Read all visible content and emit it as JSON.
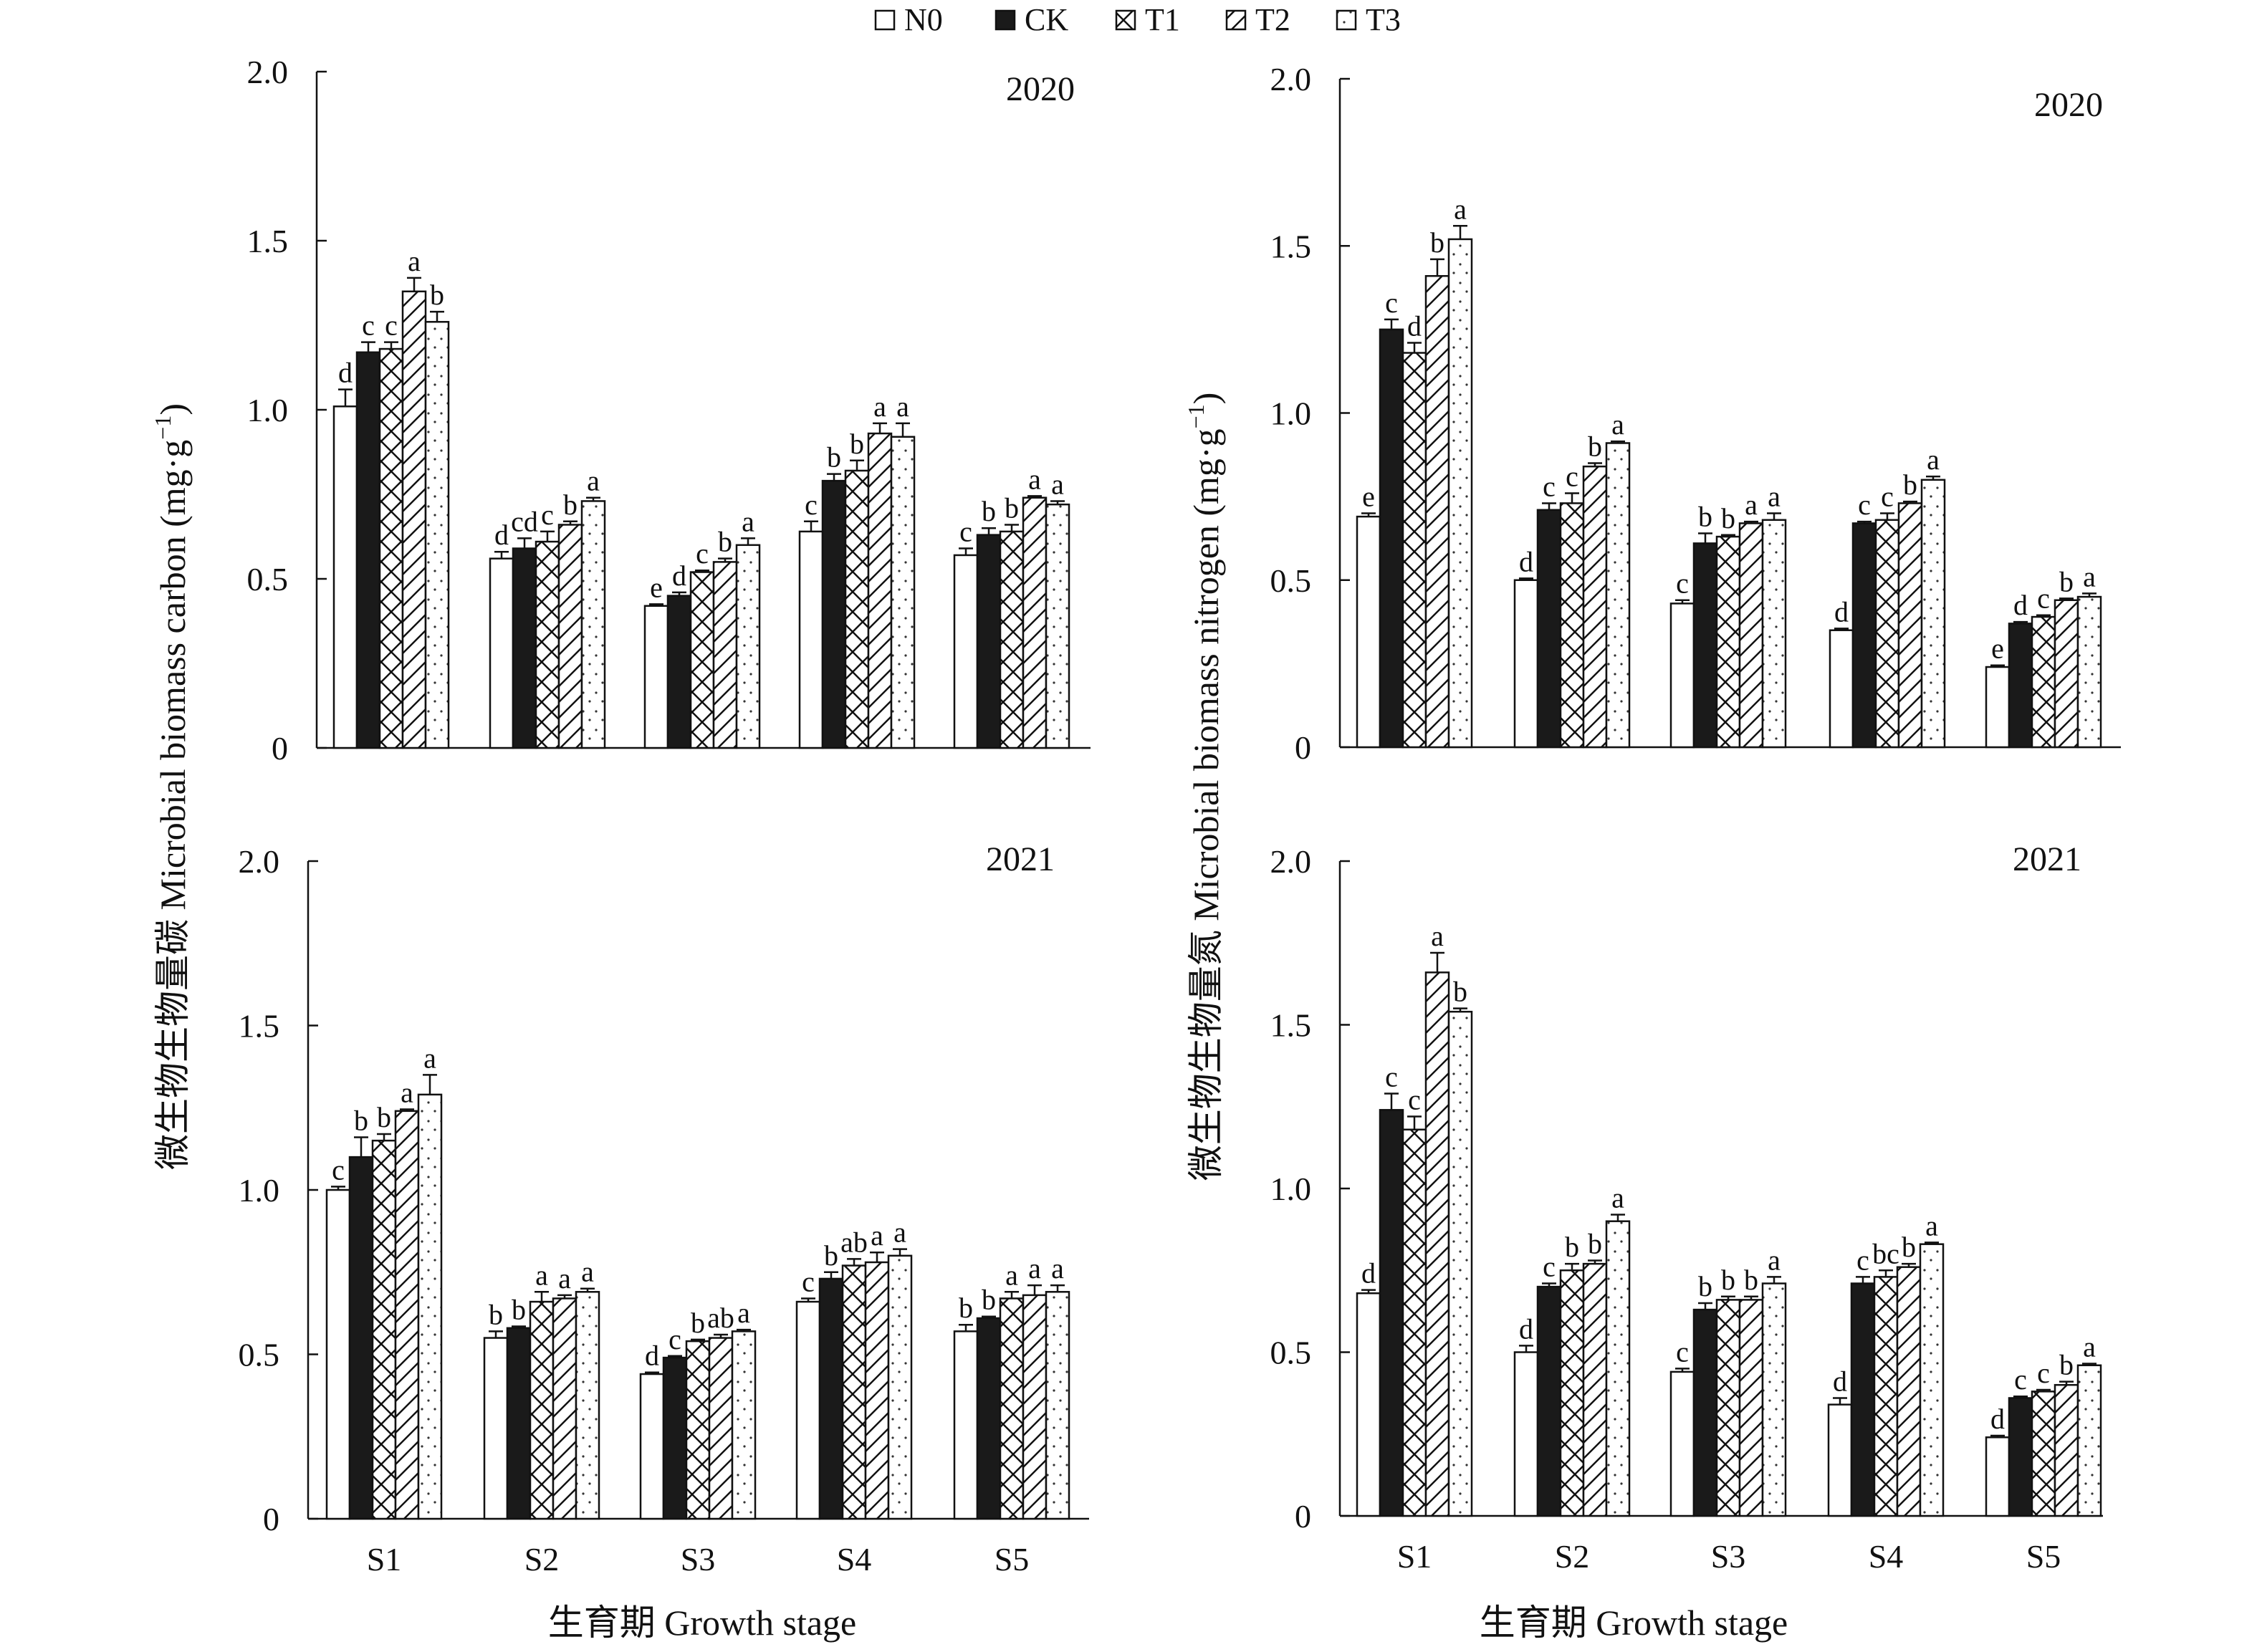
{
  "legend": [
    {
      "label": "N0",
      "pattern": "empty"
    },
    {
      "label": "CK",
      "pattern": "solid"
    },
    {
      "label": "T1",
      "pattern": "cross"
    },
    {
      "label": "T2",
      "pattern": "diag"
    },
    {
      "label": "T3",
      "pattern": "dots"
    }
  ],
  "y_titles": {
    "left": "微生物生物量碳 Microbial biomass carbon (mg·g",
    "right": "微生物生物量氮 Microbial biomass nitrogen (mg·g",
    "exp": "−1",
    "close": ")"
  },
  "x_titles": {
    "left": "生育期 Growth stage",
    "right": "生育期 Growth stage"
  },
  "chart_data": [
    {
      "type": "bar",
      "title": "2020",
      "ylabel": "微生物生物量碳 Microbial biomass carbon (mg·g−1)",
      "xlabel": "",
      "ylim": [
        0,
        2.0
      ],
      "yticks": [
        "0",
        "0.5",
        "1.0",
        "1.5",
        "2.0"
      ],
      "categories": [
        "S1",
        "S2",
        "S3",
        "S4",
        "S5"
      ],
      "show_x_tick_labels": false,
      "series": [
        {
          "name": "N0",
          "values": [
            1.01,
            0.56,
            0.42,
            0.64,
            0.57
          ],
          "errors": [
            0.05,
            0.02,
            0.005,
            0.03,
            0.02
          ],
          "letters": [
            "d",
            "d",
            "e",
            "c",
            "c"
          ]
        },
        {
          "name": "CK",
          "values": [
            1.17,
            0.59,
            0.45,
            0.79,
            0.63
          ],
          "errors": [
            0.03,
            0.03,
            0.01,
            0.02,
            0.02
          ],
          "letters": [
            "c",
            "cd",
            "d",
            "b",
            "b"
          ]
        },
        {
          "name": "T1",
          "values": [
            1.18,
            0.61,
            0.52,
            0.82,
            0.64
          ],
          "errors": [
            0.02,
            0.03,
            0.005,
            0.03,
            0.02
          ],
          "letters": [
            "c",
            "c",
            "c",
            "b",
            "b"
          ]
        },
        {
          "name": "T2",
          "values": [
            1.35,
            0.66,
            0.55,
            0.93,
            0.74
          ],
          "errors": [
            0.04,
            0.01,
            0.01,
            0.03,
            0.005
          ],
          "letters": [
            "a",
            "b",
            "b",
            "a",
            "a"
          ]
        },
        {
          "name": "T3",
          "values": [
            1.26,
            0.73,
            0.6,
            0.92,
            0.72
          ],
          "errors": [
            0.03,
            0.01,
            0.02,
            0.04,
            0.01
          ],
          "letters": [
            "b",
            "a",
            "a",
            "a",
            "a"
          ]
        }
      ]
    },
    {
      "type": "bar",
      "title": "2020",
      "ylabel": "微生物生物量氮 Microbial biomass nitrogen (mg·g−1)",
      "xlabel": "",
      "ylim": [
        0,
        2.0
      ],
      "yticks": [
        "0",
        "0.5",
        "1.0",
        "1.5",
        "2.0"
      ],
      "categories": [
        "S1",
        "S2",
        "S3",
        "S4",
        "S5"
      ],
      "show_x_tick_labels": false,
      "series": [
        {
          "name": "N0",
          "values": [
            0.69,
            0.5,
            0.43,
            0.35,
            0.24
          ],
          "errors": [
            0.01,
            0.005,
            0.01,
            0.005,
            0.005
          ],
          "letters": [
            "e",
            "d",
            "c",
            "d",
            "e"
          ]
        },
        {
          "name": "CK",
          "values": [
            1.25,
            0.71,
            0.61,
            0.67,
            0.37
          ],
          "errors": [
            0.03,
            0.02,
            0.03,
            0.005,
            0.005
          ],
          "letters": [
            "c",
            "c",
            "b",
            "c",
            "d"
          ]
        },
        {
          "name": "T1",
          "values": [
            1.18,
            0.73,
            0.63,
            0.68,
            0.39
          ],
          "errors": [
            0.03,
            0.03,
            0.005,
            0.02,
            0.005
          ],
          "letters": [
            "d",
            "c",
            "b",
            "c",
            "c"
          ]
        },
        {
          "name": "T2",
          "values": [
            1.41,
            0.84,
            0.67,
            0.73,
            0.44
          ],
          "errors": [
            0.05,
            0.01,
            0.005,
            0.005,
            0.005
          ],
          "letters": [
            "b",
            "b",
            "a",
            "b",
            "b"
          ]
        },
        {
          "name": "T3",
          "values": [
            1.52,
            0.91,
            0.68,
            0.8,
            0.45
          ],
          "errors": [
            0.04,
            0.005,
            0.02,
            0.01,
            0.01
          ],
          "letters": [
            "a",
            "a",
            "a",
            "a",
            "a"
          ]
        }
      ]
    },
    {
      "type": "bar",
      "title": "2021",
      "ylabel": "微生物生物量碳 Microbial biomass carbon (mg·g−1)",
      "xlabel": "生育期 Growth stage",
      "ylim": [
        0,
        2.0
      ],
      "yticks": [
        "0",
        "0.5",
        "1.0",
        "1.5",
        "2.0"
      ],
      "categories": [
        "S1",
        "S2",
        "S3",
        "S4",
        "S5"
      ],
      "show_x_tick_labels": true,
      "series": [
        {
          "name": "N0",
          "values": [
            1.0,
            0.55,
            0.44,
            0.66,
            0.57
          ],
          "errors": [
            0.01,
            0.02,
            0.005,
            0.01,
            0.02
          ],
          "letters": [
            "c",
            "b",
            "d",
            "c",
            "b"
          ]
        },
        {
          "name": "CK",
          "values": [
            1.1,
            0.58,
            0.49,
            0.73,
            0.61
          ],
          "errors": [
            0.06,
            0.005,
            0.005,
            0.02,
            0.005
          ],
          "letters": [
            "b",
            "b",
            "c",
            "b",
            "b"
          ]
        },
        {
          "name": "T1",
          "values": [
            1.15,
            0.66,
            0.54,
            0.77,
            0.67
          ],
          "errors": [
            0.02,
            0.03,
            0.005,
            0.02,
            0.02
          ],
          "letters": [
            "b",
            "a",
            "b",
            "ab",
            "a"
          ]
        },
        {
          "name": "T2",
          "values": [
            1.24,
            0.67,
            0.55,
            0.78,
            0.68
          ],
          "errors": [
            0.005,
            0.01,
            0.01,
            0.03,
            0.03
          ],
          "letters": [
            "a",
            "a",
            "ab",
            "a",
            "a"
          ]
        },
        {
          "name": "T3",
          "values": [
            1.29,
            0.69,
            0.57,
            0.8,
            0.69
          ],
          "errors": [
            0.06,
            0.01,
            0.005,
            0.02,
            0.02
          ],
          "letters": [
            "a",
            "a",
            "a",
            "a",
            "a"
          ]
        }
      ]
    },
    {
      "type": "bar",
      "title": "2021",
      "ylabel": "微生物生物量氮 Microbial biomass nitrogen (mg·g−1)",
      "xlabel": "生育期 Growth stage",
      "ylim": [
        0,
        2.0
      ],
      "yticks": [
        "0",
        "0.5",
        "1.0",
        "1.5",
        "2.0"
      ],
      "categories": [
        "S1",
        "S2",
        "S3",
        "S4",
        "S5"
      ],
      "show_x_tick_labels": true,
      "series": [
        {
          "name": "N0",
          "values": [
            0.68,
            0.5,
            0.44,
            0.34,
            0.24
          ],
          "errors": [
            0.01,
            0.02,
            0.01,
            0.02,
            0.005
          ],
          "letters": [
            "d",
            "d",
            "c",
            "d",
            "d"
          ]
        },
        {
          "name": "CK",
          "values": [
            1.24,
            0.7,
            0.63,
            0.71,
            0.36
          ],
          "errors": [
            0.05,
            0.01,
            0.02,
            0.02,
            0.005
          ],
          "letters": [
            "c",
            "c",
            "b",
            "c",
            "c"
          ]
        },
        {
          "name": "T1",
          "values": [
            1.18,
            0.75,
            0.66,
            0.73,
            0.38
          ],
          "errors": [
            0.04,
            0.02,
            0.01,
            0.02,
            0.005
          ],
          "letters": [
            "c",
            "b",
            "b",
            "bc",
            "c"
          ]
        },
        {
          "name": "T2",
          "values": [
            1.66,
            0.77,
            0.66,
            0.76,
            0.4
          ],
          "errors": [
            0.06,
            0.01,
            0.01,
            0.01,
            0.01
          ],
          "letters": [
            "a",
            "b",
            "b",
            "b",
            "b"
          ]
        },
        {
          "name": "T3",
          "values": [
            1.54,
            0.9,
            0.71,
            0.83,
            0.46
          ],
          "errors": [
            0.01,
            0.02,
            0.02,
            0.005,
            0.005
          ],
          "letters": [
            "b",
            "a",
            "a",
            "a",
            "a"
          ]
        }
      ]
    }
  ]
}
